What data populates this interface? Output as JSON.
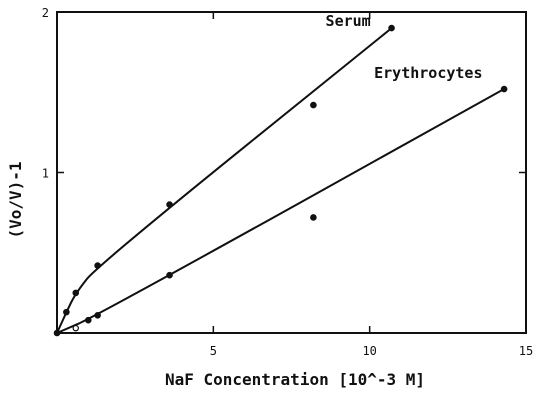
{
  "chart_data": {
    "type": "line",
    "xlabel": "NaF Concentration [10^-3 M]",
    "ylabel": "(Vo/V)-1",
    "xlim": [
      0,
      15
    ],
    "ylim": [
      0,
      2
    ],
    "xticks": [
      5,
      10,
      15
    ],
    "yticks": [
      1,
      2
    ],
    "xtick_labels": [
      "5",
      "10",
      "15"
    ],
    "ytick_labels": [
      "1",
      "2"
    ],
    "grid": false,
    "series": [
      {
        "name": "Serum",
        "label_position": "near-end",
        "points": [
          {
            "x": 0,
            "y": 0,
            "marker": "filled"
          },
          {
            "x": 0.3,
            "y": 0.13,
            "marker": "filled"
          },
          {
            "x": 0.6,
            "y": 0.25,
            "marker": "filled"
          },
          {
            "x": 1.3,
            "y": 0.42,
            "marker": "filled"
          },
          {
            "x": 3.6,
            "y": 0.8,
            "marker": "filled"
          },
          {
            "x": 8.2,
            "y": 1.42,
            "marker": "filled"
          },
          {
            "x": 10.7,
            "y": 1.9,
            "marker": "filled"
          }
        ],
        "curve": [
          [
            0,
            0
          ],
          [
            0.3,
            0.13
          ],
          [
            0.6,
            0.25
          ],
          [
            1.3,
            0.42
          ],
          [
            10.7,
            1.9
          ]
        ]
      },
      {
        "name": "Erythrocytes",
        "label_position": "near-end",
        "points": [
          {
            "x": 0.6,
            "y": 0.03,
            "marker": "open"
          },
          {
            "x": 1.0,
            "y": 0.08,
            "marker": "filled"
          },
          {
            "x": 1.3,
            "y": 0.11,
            "marker": "filled"
          },
          {
            "x": 3.6,
            "y": 0.36,
            "marker": "filled"
          },
          {
            "x": 8.2,
            "y": 0.72,
            "marker": "filled"
          },
          {
            "x": 14.3,
            "y": 1.52,
            "marker": "filled"
          }
        ],
        "curve": [
          [
            0,
            0
          ],
          [
            1.3,
            0.11
          ],
          [
            14.3,
            1.52
          ]
        ]
      }
    ]
  }
}
